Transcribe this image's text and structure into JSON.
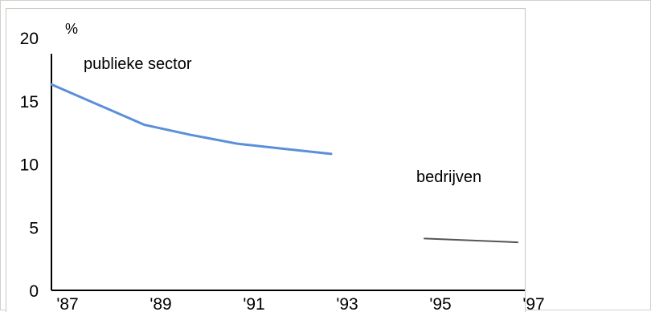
{
  "chart_data": {
    "type": "line",
    "unit": "%",
    "x_ticks": [
      "'87",
      "'89",
      "'91",
      "'93",
      "'95",
      "'97"
    ],
    "y_ticks": [
      0,
      5,
      10,
      15,
      20
    ],
    "ylim": [
      0,
      20
    ],
    "xlim": [
      1987,
      1997
    ],
    "series": [
      {
        "name": "publieke sector",
        "color": "#5b8fd9",
        "x": [
          1987,
          1988,
          1989,
          1990,
          1991,
          1992,
          1993
        ],
        "values": [
          16.3,
          14.7,
          13.1,
          12.3,
          11.6,
          11.2,
          10.8
        ]
      },
      {
        "name": "bedrijven",
        "color": "#555555",
        "x": [
          1995,
          1997
        ],
        "values": [
          4.1,
          3.8
        ]
      }
    ]
  }
}
